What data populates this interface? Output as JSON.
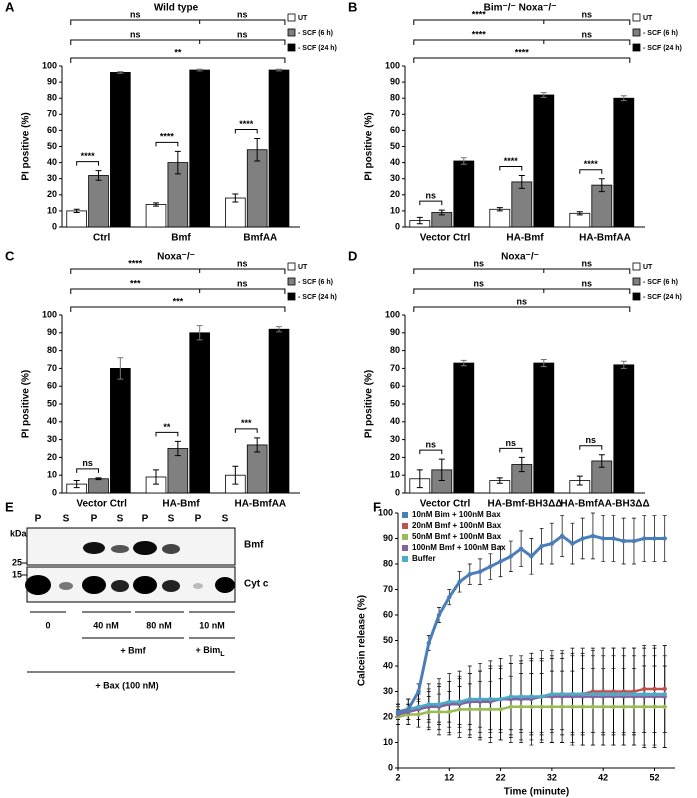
{
  "chart_data": [
    {
      "type": "bar",
      "panel_label": "A",
      "title": "Wild type",
      "y_label": "PI positive (%)",
      "categories": [
        "Ctrl",
        "Bmf",
        "BmfAA"
      ],
      "series": [
        {
          "name": "UT",
          "color": "#ffffff",
          "values": [
            10,
            14,
            18
          ],
          "errors": [
            1,
            1,
            2.5
          ]
        },
        {
          "name": "- SCF (6 h)",
          "color": "#808080",
          "values": [
            32,
            40,
            48
          ],
          "errors": [
            3,
            7,
            7
          ]
        },
        {
          "name": "- SCF (24 h)",
          "color": "#000000",
          "values": [
            96,
            97.5,
            97.5
          ],
          "errors": [
            0.5,
            0.5,
            0.5
          ]
        }
      ],
      "within_significance": [
        "****",
        "****",
        "****"
      ],
      "comparisons": [
        "ns",
        "ns",
        "ns",
        "ns",
        "**"
      ],
      "ylim": [
        0,
        100
      ],
      "yticks": [
        0,
        10,
        20,
        30,
        40,
        50,
        60,
        70,
        80,
        90,
        100
      ]
    },
    {
      "type": "bar",
      "panel_label": "B",
      "title": "Bim⁻/⁻ Noxa⁻/⁻",
      "y_label": "PI positive (%)",
      "categories": [
        "Vector Ctrl",
        "HA-Bmf",
        "HA-BmfAA"
      ],
      "series": [
        {
          "name": "UT",
          "color": "#ffffff",
          "values": [
            4,
            11,
            8.5
          ],
          "errors": [
            2,
            1,
            1
          ]
        },
        {
          "name": "- SCF (6 h)",
          "color": "#808080",
          "values": [
            9,
            28,
            26
          ],
          "errors": [
            1.5,
            4,
            4
          ]
        },
        {
          "name": "- SCF (24 h)",
          "color": "#000000",
          "values": [
            41,
            82,
            80
          ],
          "errors": [
            2,
            1.5,
            1.5
          ]
        }
      ],
      "within_significance": [
        "ns",
        "****",
        "****"
      ],
      "comparisons": [
        "****",
        "ns",
        "****",
        "ns",
        "****"
      ],
      "ylim": [
        0,
        100
      ],
      "yticks": [
        0,
        10,
        20,
        30,
        40,
        50,
        60,
        70,
        80,
        90,
        100
      ]
    },
    {
      "type": "bar",
      "panel_label": "C",
      "title": "Noxa⁻/⁻",
      "y_label": "PI positive (%)",
      "categories": [
        "Vector Ctrl",
        "HA-Bmf",
        "HA-BmfAA"
      ],
      "series": [
        {
          "name": "UT",
          "color": "#ffffff",
          "values": [
            5,
            9,
            10
          ],
          "errors": [
            2,
            4,
            5
          ]
        },
        {
          "name": "- SCF (6 h)",
          "color": "#808080",
          "values": [
            8,
            25,
            27
          ],
          "errors": [
            0.5,
            4,
            4
          ]
        },
        {
          "name": "- SCF (24 h)",
          "color": "#000000",
          "values": [
            70,
            90,
            92
          ],
          "errors": [
            6,
            4,
            1.5
          ]
        }
      ],
      "within_significance": [
        "ns",
        "**",
        "***"
      ],
      "comparisons": [
        "****",
        "ns",
        "***",
        "ns",
        "***"
      ],
      "ylim": [
        0,
        100
      ],
      "yticks": [
        0,
        10,
        20,
        30,
        40,
        50,
        60,
        70,
        80,
        90,
        100
      ]
    },
    {
      "type": "bar",
      "panel_label": "D",
      "title": "Noxa⁻/⁻",
      "y_label": "PI positive (%)",
      "categories": [
        "Vector Ctrl",
        "HA-Bmf-BH3ΔΔ",
        "HA-BmfAA-BH3ΔΔ"
      ],
      "series": [
        {
          "name": "UT",
          "color": "#ffffff",
          "values": [
            8,
            7,
            7
          ],
          "errors": [
            5,
            1.5,
            2.5
          ]
        },
        {
          "name": "- SCF (6 h)",
          "color": "#808080",
          "values": [
            13,
            16,
            18
          ],
          "errors": [
            6,
            4,
            3.5
          ]
        },
        {
          "name": "- SCF (24 h)",
          "color": "#000000",
          "values": [
            73,
            73,
            72
          ],
          "errors": [
            1.5,
            2,
            2
          ]
        }
      ],
      "within_significance": [
        "ns",
        "ns",
        "ns"
      ],
      "comparisons": [
        "ns",
        "ns",
        "ns",
        "ns",
        "ns"
      ],
      "ylim": [
        0,
        100
      ],
      "yticks": [
        0,
        10,
        20,
        30,
        40,
        50,
        60,
        70,
        80,
        90,
        100
      ]
    },
    {
      "type": "line",
      "panel_label": "F",
      "x_label": "Time (minute)",
      "y_label": "Calcein release (%)",
      "x": [
        2,
        4,
        6,
        8,
        10,
        12,
        14,
        16,
        18,
        20,
        22,
        24,
        26,
        28,
        30,
        32,
        34,
        36,
        38,
        40,
        42,
        44,
        46,
        48,
        50,
        52,
        54
      ],
      "series": [
        {
          "name": "10nM Bim + 100nM Bax",
          "color": "#4a7ebb",
          "values": [
            22,
            23,
            30,
            49,
            60,
            67,
            73,
            76,
            77,
            79,
            81,
            83,
            86,
            83,
            87,
            88,
            91,
            88,
            90,
            91,
            90,
            90,
            89,
            89,
            90,
            90,
            90
          ],
          "errors": [
            2,
            2,
            3,
            3,
            3,
            3,
            4,
            4,
            5,
            5,
            6,
            6,
            7,
            7,
            7,
            8,
            8,
            8,
            8,
            9,
            9,
            9,
            9,
            9,
            9,
            9,
            9
          ]
        },
        {
          "name": "20nM Bmf + 100nM Bax",
          "color": "#c0504d",
          "values": [
            22,
            23,
            24,
            24,
            25,
            25,
            26,
            26,
            26,
            27,
            27,
            27,
            28,
            28,
            28,
            29,
            29,
            29,
            29,
            30,
            30,
            30,
            30,
            30,
            31,
            31,
            31
          ],
          "errors": [
            3,
            4,
            5,
            6,
            8,
            9,
            10,
            11,
            12,
            13,
            13,
            14,
            14,
            15,
            15,
            15,
            16,
            16,
            16,
            16,
            17,
            17,
            17,
            17,
            17,
            17,
            17
          ]
        },
        {
          "name": "50nM Bmf + 100nM Bax",
          "color": "#9bbb59",
          "values": [
            20,
            21,
            21,
            22,
            22,
            22,
            23,
            23,
            23,
            23,
            23,
            24,
            24,
            24,
            24,
            24,
            24,
            24,
            24,
            24,
            24,
            24,
            24,
            24,
            24,
            24,
            24
          ],
          "errors": [
            3,
            4,
            5,
            6,
            7,
            8,
            9,
            10,
            11,
            11,
            12,
            12,
            13,
            13,
            13,
            14,
            14,
            14,
            15,
            15,
            15,
            15,
            15,
            15,
            16,
            16,
            16
          ]
        },
        {
          "name": "100nM Bmf + 100nM Bax",
          "color": "#8064a2",
          "values": [
            21,
            22,
            23,
            24,
            24,
            25,
            25,
            26,
            26,
            26,
            27,
            27,
            27,
            27,
            28,
            28,
            28,
            28,
            28,
            28,
            28,
            28,
            28,
            28,
            28,
            28,
            28
          ],
          "errors": [
            4,
            5,
            7,
            9,
            11,
            12,
            13,
            14,
            15,
            16,
            16,
            17,
            17,
            18,
            18,
            18,
            18,
            19,
            19,
            19,
            19,
            19,
            19,
            19,
            19,
            19,
            20
          ]
        },
        {
          "name": "Buffer",
          "color": "#4bacc6",
          "values": [
            22,
            23,
            24,
            25,
            25,
            26,
            26,
            27,
            27,
            27,
            27,
            28,
            28,
            28,
            28,
            29,
            29,
            29,
            29,
            29,
            29,
            29,
            29,
            29,
            29,
            29,
            29
          ],
          "errors": [
            3,
            4,
            5,
            6,
            7,
            8,
            9,
            10,
            11,
            12,
            12,
            13,
            13,
            14,
            14,
            14,
            14,
            15,
            15,
            15,
            15,
            15,
            15,
            15,
            15,
            15,
            15
          ]
        }
      ],
      "xlim": [
        2,
        56
      ],
      "xticks": [
        2,
        12,
        22,
        32,
        42,
        52
      ],
      "ylim": [
        0,
        100
      ],
      "yticks": [
        0,
        10,
        20,
        30,
        40,
        50,
        60,
        70,
        80,
        90,
        100
      ]
    }
  ],
  "blot": {
    "panel_label": "E",
    "mw_unit": "kDa",
    "mw_markers": [
      25,
      15
    ],
    "lanes": [
      "P",
      "S",
      "P",
      "S",
      "P",
      "S",
      "P",
      "S"
    ],
    "bands": [
      "Bmf",
      "Cyt c"
    ],
    "doses": [
      "0",
      "40 nM",
      "80 nM",
      "10 nM"
    ],
    "treatments": [
      {
        "text": "+ Bmf"
      },
      {
        "text": "+ Bim",
        "subscript": "L"
      }
    ],
    "buffer": "+ Bax (100 nM)"
  }
}
